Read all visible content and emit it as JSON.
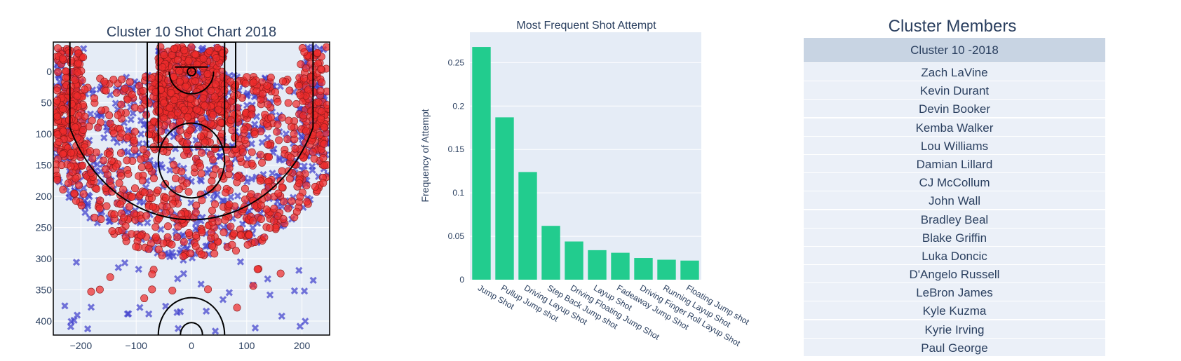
{
  "shot_chart": {
    "title": "Cluster 10 Shot Chart 2018",
    "xlim": [
      -250,
      250
    ],
    "ylim": [
      422.5,
      -47.5
    ],
    "x_ticks": [
      -200,
      -100,
      0,
      100,
      200
    ],
    "x_tick_labels": [
      "−200",
      "−100",
      "0",
      "100",
      "200"
    ],
    "y_ticks": [
      0,
      50,
      100,
      150,
      200,
      250,
      300,
      350,
      400
    ],
    "y_tick_labels": [
      "0",
      "50",
      "100",
      "150",
      "200",
      "250",
      "300",
      "350",
      "400"
    ],
    "colors": {
      "made": "#ee2b2b",
      "missed": "#3d3dcc",
      "background": "#e5ecf6"
    }
  },
  "chart_data": [
    {
      "type": "bar",
      "title": "Most Frequent Shot Attempt",
      "xlabel": "",
      "ylabel": "Frequency of Attempt",
      "categories": [
        "Jump Shot",
        "Pullup Jump shot",
        "Driving Layup Shot",
        "Step Back Jump shot",
        "Driving Floating Jump Shot",
        "Layup Shot",
        "Fadeaway Jump Shot",
        "Driving Finger Roll Layup Shot",
        "Running Layup Shot",
        "Floating Jump shot"
      ],
      "values": [
        0.268,
        0.187,
        0.124,
        0.062,
        0.044,
        0.034,
        0.031,
        0.025,
        0.023,
        0.022
      ],
      "ylim": [
        0,
        0.285
      ],
      "y_ticks": [
        0,
        0.05,
        0.1,
        0.15,
        0.2,
        0.25
      ],
      "y_tick_labels": [
        "0",
        "0.05",
        "0.1",
        "0.15",
        "0.2",
        "0.25"
      ],
      "color": "#22cc8e",
      "grid": true
    }
  ],
  "table": {
    "title": "Cluster Members",
    "header": "Cluster 10 -2018",
    "rows": [
      "Zach LaVine",
      "Kevin Durant",
      "Devin Booker",
      "Kemba Walker",
      "Lou Williams",
      "Damian Lillard",
      "CJ McCollum",
      "John Wall",
      "Bradley Beal",
      "Blake Griffin",
      "Luka Doncic",
      "D'Angelo Russell",
      "LeBron James",
      "Kyle Kuzma",
      "Kyrie Irving",
      "Paul George"
    ]
  }
}
